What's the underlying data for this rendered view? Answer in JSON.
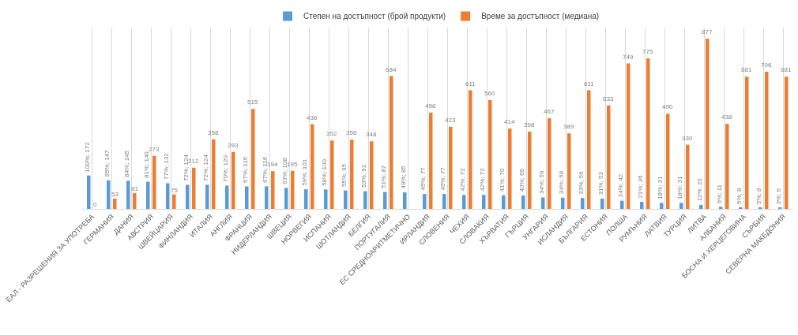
{
  "chart_data": {
    "type": "bar",
    "categories": [
      "ЕАЛ - РАЗРЕШЕНИЯ ЗА УПОТРЕБА",
      "ГЕРМАНИЯ",
      "ДАНИЯ",
      "АВСТРИЯ",
      "ШВЕЙЦАРИЯ",
      "ФИНЛАНДИЯ",
      "ИТАЛИЯ",
      "АНГЛИЯ",
      "ФРАНЦИЯ",
      "НИДЕРЛАНДИЯ",
      "ШВЕЦИЯ",
      "НОРВЕГИЯ",
      "ИСПАНИЯ",
      "ШОТЛАНДИЯ",
      "БЕЛГИЯ",
      "ПОРТУГАЛИЯ",
      "ЕС СРЕДНОАРИТМЕТИЧНО",
      "ИРЛАНДИЯ",
      "СЛОВЕНИЯ",
      "ЧЕХИЯ",
      "СЛОВАКИЯ",
      "ХЪРВАТИЯ",
      "ГЪРЦИЯ",
      "УНГАРИЯ",
      "ИСЛАНДИЯ",
      "БЪЛГАРИЯ",
      "ЕСТОНИЯ",
      "ПОЛША",
      "РУМЪНИЯ",
      "ЛАТВИЯ",
      "ТУРЦИЯ",
      "ЛИТВА",
      "АЛБАНИЯ",
      "БОСНА И ХЕРЦЕГОВИНА",
      "СЪРБИЯ",
      "СЕВЕРНА МАКЕДОНИЯ"
    ],
    "series": [
      {
        "name": "Степен на достъпност (брой продукти)",
        "color": "#5b9bd5",
        "values": [
          172,
          147,
          145,
          140,
          132,
          124,
          124,
          120,
          116,
          116,
          108,
          101,
          100,
          95,
          91,
          87,
          85,
          77,
          77,
          72,
          72,
          70,
          69,
          59,
          58,
          56,
          53,
          42,
          36,
          31,
          31,
          21,
          11,
          8,
          8,
          6
        ],
        "value_labels": [
          "100%; 172",
          "85%; 147",
          "84%; 145",
          "81%; 140",
          "77%; 132",
          "72%; 124",
          "72%; 124",
          "70%; 120",
          "67%; 116",
          "67%; 116",
          "63%; 108",
          "59%; 101",
          "58%; 100",
          "55%; 95",
          "53%; 91",
          "51%; 87",
          "49%; 85",
          "45%; 77",
          "45%; 77",
          "42%; 72",
          "42%; 72",
          "41%; 70",
          "40%; 69",
          "34%; 59",
          "34%; 58",
          "33%; 56",
          "31%; 53",
          "24%; 42",
          "21%; 36",
          "18%; 31",
          "18%; 31",
          "12%; 21",
          "6%; 11",
          "5%; 8",
          "5%; 8",
          "3%; 6"
        ]
      },
      {
        "name": "Време за достъпност (медиана)",
        "color": "#ed7d31",
        "values": [
          0,
          53,
          81,
          273,
          75,
          212,
          358,
          293,
          515,
          194,
          195,
          436,
          352,
          356,
          348,
          684,
          null,
          496,
          423,
          611,
          560,
          414,
          398,
          467,
          389,
          611,
          533,
          749,
          775,
          490,
          330,
          877,
          438,
          681,
          706,
          681
        ],
        "value_labels": [
          "0",
          "53",
          "81",
          "273",
          "75",
          "212",
          "358",
          "293",
          "515",
          "194",
          "195",
          "436",
          "352",
          "356",
          "348",
          "684",
          null,
          "496",
          "423",
          "611",
          "560",
          "414",
          "398",
          "467",
          "389",
          "611",
          "533",
          "749",
          "775",
          "490",
          "330",
          "877",
          "438",
          "681",
          "706",
          "681"
        ]
      }
    ],
    "grid": "x",
    "legend": "top"
  }
}
